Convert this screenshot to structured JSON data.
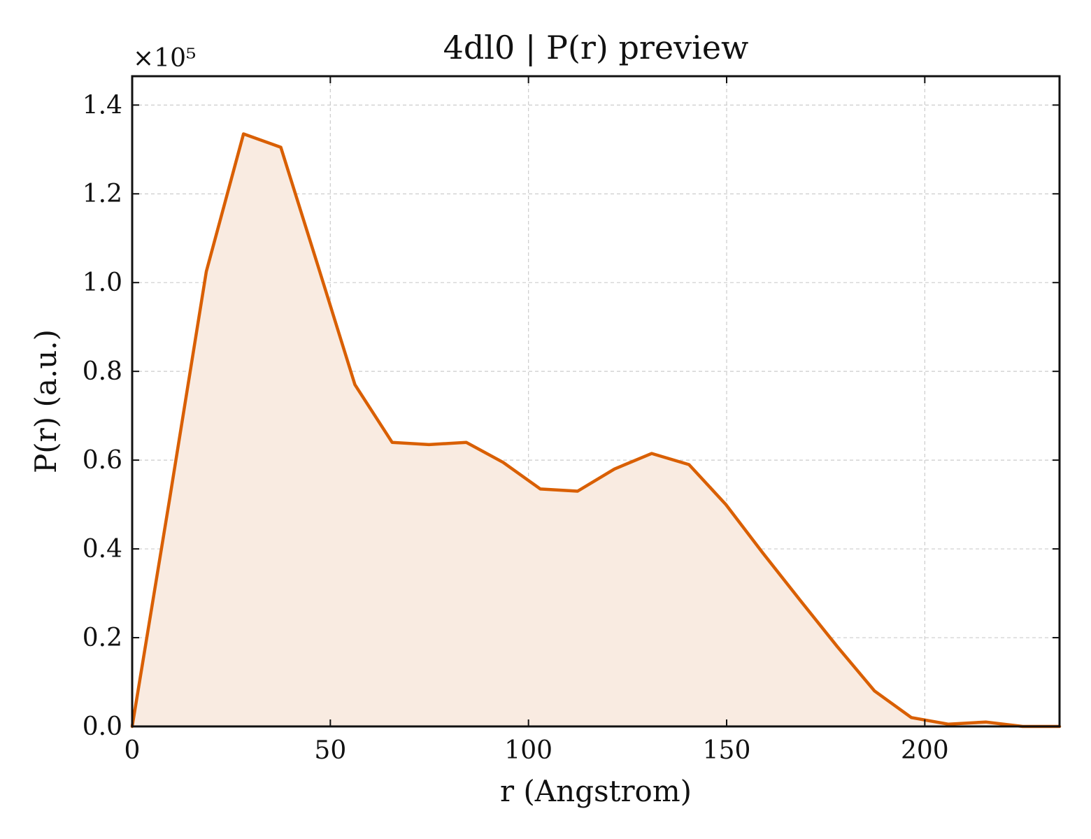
{
  "chart_data": {
    "type": "area",
    "title": "4dl0 | P(r) preview",
    "xlabel": "r (Angstrom)",
    "ylabel": "P(r) (a.u.)",
    "y_multiplier_label": "×10⁵",
    "xlim": [
      0,
      234
    ],
    "ylim": [
      0,
      1.465
    ],
    "xticks": [
      0,
      50,
      100,
      150,
      200
    ],
    "xtick_labels": [
      "0",
      "50",
      "100",
      "150",
      "200"
    ],
    "yticks": [
      0,
      0.2,
      0.4,
      0.6,
      0.8,
      1.0,
      1.2,
      1.4
    ],
    "ytick_labels": [
      "0.0",
      "0.2",
      "0.4",
      "0.6",
      "0.8",
      "1.0",
      "1.2",
      "1.4"
    ],
    "grid": true,
    "line_color": "#d95f02",
    "fill_color": "#f9ebe1",
    "series": [
      {
        "x": [
          0,
          9.4,
          18.7,
          28.1,
          37.5,
          46.8,
          56.2,
          65.6,
          74.9,
          84.3,
          93.6,
          103.0,
          112.4,
          121.7,
          131.1,
          140.5,
          149.8,
          159.2,
          168.5,
          177.9,
          187.3,
          196.6,
          206.0,
          215.4,
          224.7,
          234.0
        ],
        "y": [
          0.0,
          0.51,
          1.025,
          1.335,
          1.305,
          1.04,
          0.77,
          0.64,
          0.635,
          0.64,
          0.595,
          0.535,
          0.53,
          0.58,
          0.615,
          0.59,
          0.5,
          0.39,
          0.285,
          0.18,
          0.08,
          0.02,
          0.005,
          0.01,
          0.0,
          0.0
        ]
      }
    ]
  }
}
